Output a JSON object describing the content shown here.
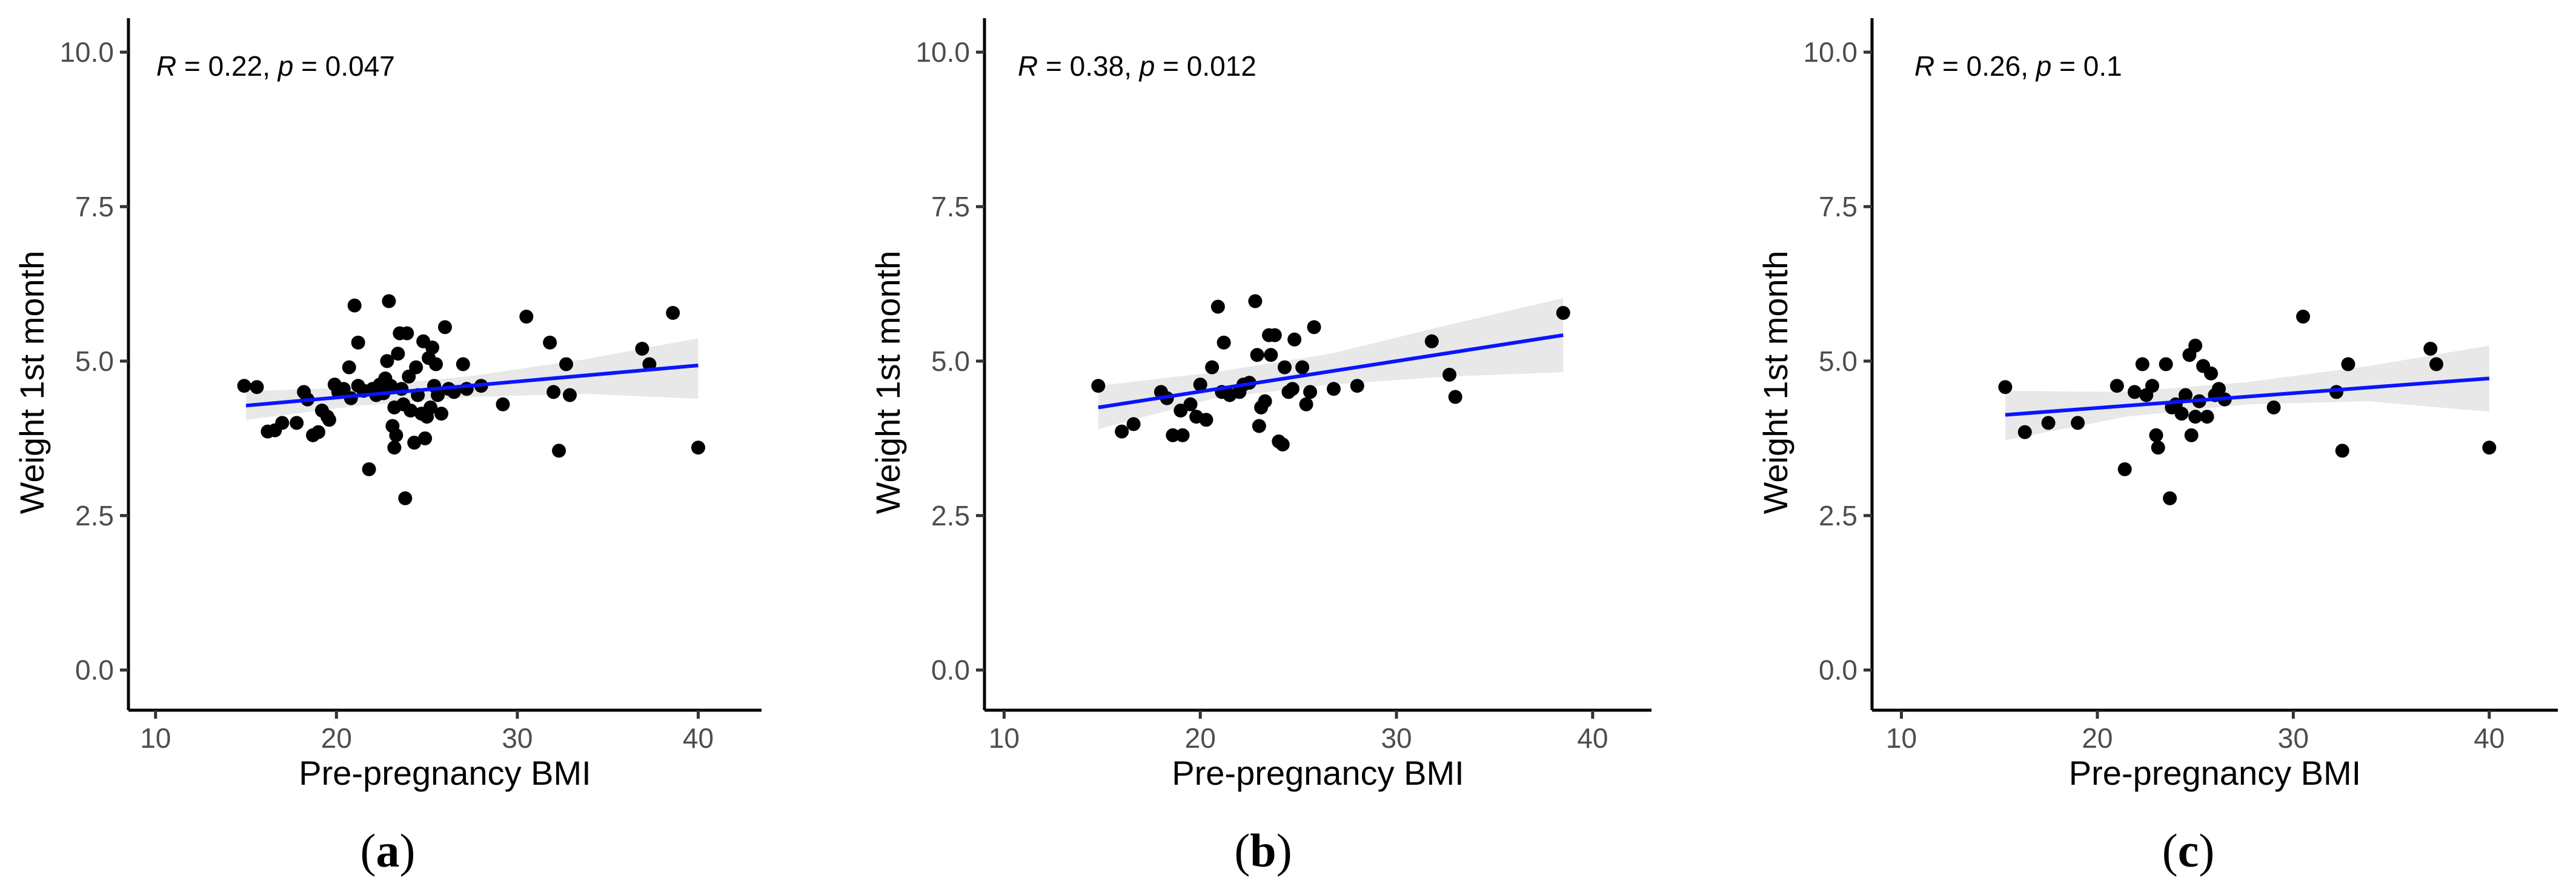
{
  "chart_data": [
    {
      "type": "scatter",
      "panel": "a",
      "panel_label": "(a)",
      "xlabel": "Pre-pregnancy BMI",
      "ylabel": "Weight 1st month",
      "xlim": [
        8.5,
        43.5
      ],
      "ylim": [
        -0.65,
        10.55
      ],
      "x_ticks": [
        "10",
        "20",
        "30",
        "40"
      ],
      "y_ticks": [
        "0.0",
        "2.5",
        "5.0",
        "7.5",
        "10.0"
      ],
      "annotation": {
        "R_label": "R",
        "R_value": " = 0.22, ",
        "p_label": "p",
        "p_value": " = 0.047"
      },
      "fit": {
        "x0": 15.0,
        "y0": 4.28,
        "x1": 40.0,
        "y1": 4.93
      },
      "ci": {
        "lower": [
          4.05,
          4.28,
          4.42,
          4.47,
          4.39
        ],
        "upper": [
          4.51,
          4.58,
          4.76,
          5.03,
          5.37
        ]
      },
      "points": [
        [
          14.9,
          4.6
        ],
        [
          15.6,
          4.58
        ],
        [
          16.2,
          3.86
        ],
        [
          16.6,
          3.88
        ],
        [
          17.0,
          4.0
        ],
        [
          17.8,
          4.0
        ],
        [
          18.2,
          4.5
        ],
        [
          18.4,
          4.38
        ],
        [
          18.7,
          3.8
        ],
        [
          19.0,
          3.85
        ],
        [
          19.2,
          4.2
        ],
        [
          19.5,
          4.1
        ],
        [
          19.6,
          4.05
        ],
        [
          19.9,
          4.62
        ],
        [
          20.1,
          4.5
        ],
        [
          20.4,
          4.55
        ],
        [
          20.7,
          4.9
        ],
        [
          20.8,
          4.4
        ],
        [
          21.0,
          5.9
        ],
        [
          21.2,
          5.3
        ],
        [
          21.2,
          4.6
        ],
        [
          21.5,
          4.52
        ],
        [
          21.8,
          3.25
        ],
        [
          22.0,
          4.55
        ],
        [
          22.2,
          4.45
        ],
        [
          22.4,
          4.62
        ],
        [
          22.6,
          4.48
        ],
        [
          22.7,
          4.72
        ],
        [
          22.8,
          5.0
        ],
        [
          22.9,
          5.97
        ],
        [
          23.0,
          4.6
        ],
        [
          23.1,
          3.95
        ],
        [
          23.2,
          3.6
        ],
        [
          23.2,
          4.25
        ],
        [
          23.3,
          3.8
        ],
        [
          23.4,
          5.12
        ],
        [
          23.5,
          5.45
        ],
        [
          23.6,
          4.55
        ],
        [
          23.7,
          4.3
        ],
        [
          23.8,
          2.78
        ],
        [
          23.9,
          5.45
        ],
        [
          24.0,
          4.75
        ],
        [
          24.1,
          4.2
        ],
        [
          24.3,
          3.68
        ],
        [
          24.4,
          4.9
        ],
        [
          24.5,
          4.45
        ],
        [
          24.7,
          4.15
        ],
        [
          24.8,
          5.32
        ],
        [
          24.9,
          3.75
        ],
        [
          25.0,
          4.1
        ],
        [
          25.1,
          5.05
        ],
        [
          25.2,
          4.25
        ],
        [
          25.3,
          5.22
        ],
        [
          25.4,
          4.6
        ],
        [
          25.5,
          4.95
        ],
        [
          25.6,
          4.45
        ],
        [
          25.8,
          4.15
        ],
        [
          26.0,
          5.55
        ],
        [
          26.2,
          4.55
        ],
        [
          26.5,
          4.5
        ],
        [
          27.0,
          4.95
        ],
        [
          27.2,
          4.55
        ],
        [
          28.0,
          4.6
        ],
        [
          29.2,
          4.3
        ],
        [
          30.5,
          5.72
        ],
        [
          31.8,
          5.3
        ],
        [
          32.0,
          4.5
        ],
        [
          32.3,
          3.55
        ],
        [
          32.7,
          4.95
        ],
        [
          32.9,
          4.45
        ],
        [
          36.9,
          5.2
        ],
        [
          37.3,
          4.95
        ],
        [
          38.6,
          5.78
        ],
        [
          40.0,
          3.6
        ]
      ]
    },
    {
      "type": "scatter",
      "panel": "b",
      "panel_label": "(b)",
      "xlabel": "Pre-pregnancy BMI",
      "ylabel": "Weight 1st month",
      "xlim": [
        9.0,
        43.0
      ],
      "ylim": [
        -0.65,
        10.55
      ],
      "x_ticks": [
        "10",
        "20",
        "30",
        "40"
      ],
      "y_ticks": [
        "0.0",
        "2.5",
        "5.0",
        "7.5",
        "10.0"
      ],
      "annotation": {
        "R_label": "R",
        "R_value": " = 0.38, ",
        "p_label": "p",
        "p_value": " = 0.012"
      },
      "fit": {
        "x0": 14.8,
        "y0": 4.25,
        "x1": 38.5,
        "y1": 5.42
      },
      "ci": {
        "lower": [
          3.9,
          4.4,
          4.62,
          4.75,
          4.82
        ],
        "upper": [
          4.6,
          4.82,
          5.12,
          5.58,
          6.02
        ]
      },
      "points": [
        [
          14.8,
          4.6
        ],
        [
          16.0,
          3.86
        ],
        [
          16.6,
          3.98
        ],
        [
          18.0,
          4.5
        ],
        [
          18.3,
          4.4
        ],
        [
          18.6,
          3.8
        ],
        [
          19.0,
          4.2
        ],
        [
          19.1,
          3.8
        ],
        [
          19.5,
          4.3
        ],
        [
          19.8,
          4.1
        ],
        [
          20.0,
          4.62
        ],
        [
          20.3,
          4.05
        ],
        [
          20.6,
          4.9
        ],
        [
          20.9,
          5.88
        ],
        [
          21.1,
          4.5
        ],
        [
          21.2,
          5.3
        ],
        [
          21.5,
          4.45
        ],
        [
          22.0,
          4.5
        ],
        [
          22.2,
          4.62
        ],
        [
          22.5,
          4.65
        ],
        [
          22.8,
          5.97
        ],
        [
          22.9,
          5.1
        ],
        [
          23.0,
          3.95
        ],
        [
          23.1,
          4.25
        ],
        [
          23.3,
          4.35
        ],
        [
          23.5,
          5.42
        ],
        [
          23.6,
          5.1
        ],
        [
          23.8,
          5.42
        ],
        [
          24.0,
          3.7
        ],
        [
          24.2,
          3.65
        ],
        [
          24.3,
          4.9
        ],
        [
          24.5,
          4.5
        ],
        [
          24.7,
          4.55
        ],
        [
          24.8,
          5.35
        ],
        [
          25.2,
          4.9
        ],
        [
          25.4,
          4.3
        ],
        [
          25.6,
          4.5
        ],
        [
          25.8,
          5.55
        ],
        [
          26.8,
          4.55
        ],
        [
          28.0,
          4.6
        ],
        [
          31.8,
          5.32
        ],
        [
          32.7,
          4.78
        ],
        [
          33.0,
          4.42
        ],
        [
          38.5,
          5.78
        ]
      ]
    },
    {
      "type": "scatter",
      "panel": "c",
      "panel_label": "(c)",
      "xlabel": "Pre-pregnancy BMI",
      "ylabel": "Weight 1st month",
      "xlim": [
        8.5,
        43.5
      ],
      "ylim": [
        -0.65,
        10.55
      ],
      "x_ticks": [
        "10",
        "20",
        "30",
        "40"
      ],
      "y_ticks": [
        "0.0",
        "2.5",
        "5.0",
        "7.5",
        "10.0"
      ],
      "annotation": {
        "R_label": "R",
        "R_value": " = 0.26, ",
        "p_label": "p",
        "p_value": " = 0.1"
      },
      "fit": {
        "x0": 15.3,
        "y0": 4.13,
        "x1": 40.0,
        "y1": 4.72
      },
      "ci": {
        "lower": [
          3.72,
          4.1,
          4.3,
          4.35,
          4.18
        ],
        "upper": [
          4.52,
          4.5,
          4.66,
          4.92,
          5.25
        ]
      },
      "points": [
        [
          15.3,
          4.58
        ],
        [
          16.3,
          3.85
        ],
        [
          17.5,
          4.0
        ],
        [
          19.0,
          4.0
        ],
        [
          21.0,
          4.6
        ],
        [
          21.4,
          3.25
        ],
        [
          21.9,
          4.5
        ],
        [
          22.3,
          4.95
        ],
        [
          22.5,
          4.45
        ],
        [
          22.8,
          4.6
        ],
        [
          23.0,
          3.8
        ],
        [
          23.1,
          3.6
        ],
        [
          23.5,
          4.95
        ],
        [
          23.7,
          2.78
        ],
        [
          23.8,
          4.25
        ],
        [
          24.0,
          4.3
        ],
        [
          24.3,
          4.15
        ],
        [
          24.5,
          4.45
        ],
        [
          24.7,
          5.1
        ],
        [
          24.8,
          3.8
        ],
        [
          25.0,
          5.25
        ],
        [
          25.0,
          4.1
        ],
        [
          25.2,
          4.35
        ],
        [
          25.4,
          4.92
        ],
        [
          25.6,
          4.1
        ],
        [
          25.8,
          4.8
        ],
        [
          26.0,
          4.45
        ],
        [
          26.2,
          4.55
        ],
        [
          26.5,
          4.38
        ],
        [
          29.0,
          4.25
        ],
        [
          30.5,
          5.72
        ],
        [
          32.2,
          4.5
        ],
        [
          32.5,
          3.55
        ],
        [
          32.8,
          4.95
        ],
        [
          37.0,
          5.2
        ],
        [
          37.3,
          4.95
        ],
        [
          40.0,
          3.6
        ]
      ]
    }
  ]
}
